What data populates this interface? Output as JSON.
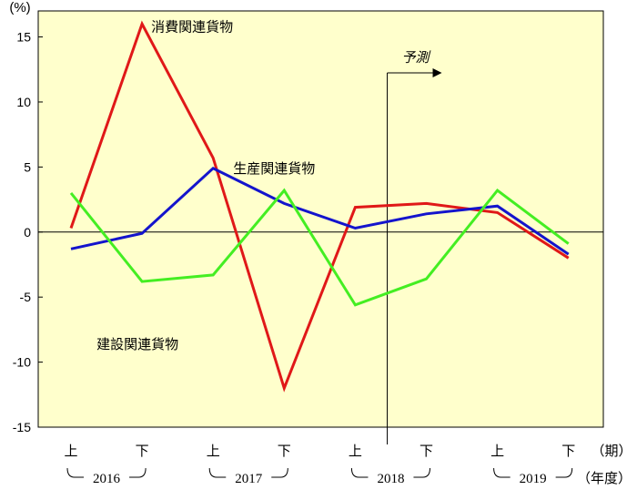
{
  "chart_data": {
    "type": "line",
    "y_unit": "(%)",
    "ylim": [
      -15,
      17
    ],
    "yticks": [
      15,
      10,
      5,
      0,
      -5,
      -10,
      -15
    ],
    "categories": [
      "上",
      "下",
      "上",
      "下",
      "上",
      "下",
      "上",
      "下"
    ],
    "period_label": "（期）",
    "fiscal_year_label": "（年度）",
    "years": [
      "2016",
      "2017",
      "2018",
      "2019"
    ],
    "forecast_label": "予測",
    "forecast_divider_after_index": 4.45,
    "series": [
      {
        "name": "消費関連貨物",
        "color": "#e01818",
        "values": [
          0.3,
          16.0,
          5.7,
          -12.0,
          1.9,
          2.2,
          1.5,
          -2.0
        ]
      },
      {
        "name": "生産関連貨物",
        "color": "#1414cc",
        "values": [
          -1.3,
          -0.1,
          4.9,
          2.2,
          0.3,
          1.4,
          2.0,
          -1.7
        ]
      },
      {
        "name": "建設関連貨物",
        "color": "#44ee22",
        "values": [
          3.0,
          -3.8,
          -3.3,
          3.2,
          -5.6,
          -3.6,
          3.2,
          -0.9
        ]
      }
    ],
    "plot_background": "#ffffcc",
    "grid": false
  }
}
